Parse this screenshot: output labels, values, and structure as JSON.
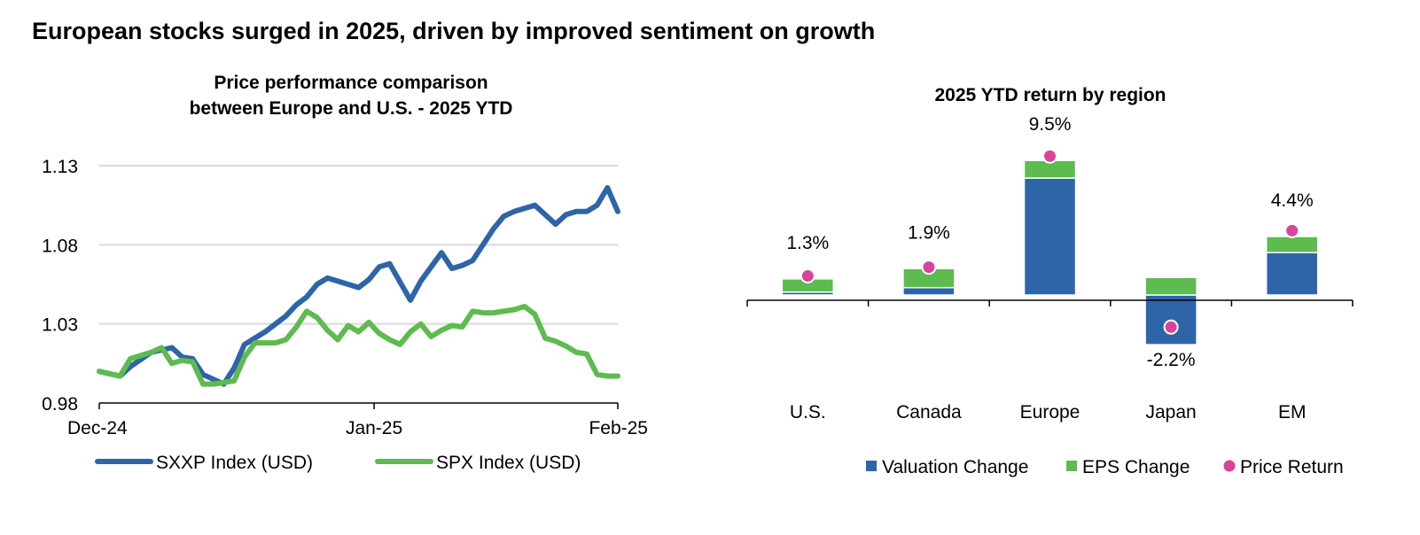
{
  "title": "European stocks surged in 2025, driven by improved sentiment on growth",
  "colors": {
    "blue": "#2E64A8",
    "green": "#5DBB4F",
    "pink": "#D9449A",
    "grid": "#D9D9D9",
    "axis": "#000000"
  },
  "chart_data": [
    {
      "type": "line",
      "title_lines": [
        "Price performance comparison",
        "between Europe and U.S. - 2025 YTD"
      ],
      "xlabel": "",
      "ylabel": "",
      "ylim": [
        0.98,
        1.13
      ],
      "yticks": [
        1.13,
        1.08,
        1.03,
        0.98
      ],
      "ytick_labels": [
        "1.13",
        "1.08",
        "1.03",
        "0.98"
      ],
      "grid": true,
      "legend_position": "bottom",
      "xticks": [
        {
          "t": 0,
          "label": "Dec-24"
        },
        {
          "t": 26.5,
          "label": "Jan-25"
        },
        {
          "t": 50,
          "label": "Feb-25"
        }
      ],
      "series": [
        {
          "name": "SXXP Index (USD)",
          "color": "blue",
          "x": [
            0,
            2,
            3,
            5,
            7,
            8,
            9,
            10,
            11,
            12,
            13,
            14,
            16,
            17,
            18,
            19,
            20,
            21,
            22,
            23,
            24,
            25,
            26,
            27,
            28,
            30,
            31,
            32,
            33,
            34,
            35,
            36,
            38,
            39,
            40,
            41,
            42,
            44,
            45,
            46,
            47,
            48,
            49,
            50
          ],
          "values": [
            1.0,
            0.997,
            1.003,
            1.012,
            1.015,
            1.009,
            1.008,
            0.998,
            0.995,
            0.992,
            1.002,
            1.017,
            1.025,
            1.03,
            1.035,
            1.042,
            1.047,
            1.055,
            1.059,
            1.057,
            1.055,
            1.053,
            1.058,
            1.066,
            1.068,
            1.045,
            1.057,
            1.066,
            1.075,
            1.065,
            1.067,
            1.07,
            1.09,
            1.098,
            1.101,
            1.103,
            1.105,
            1.093,
            1.099,
            1.101,
            1.101,
            1.105,
            1.116,
            1.101
          ]
        },
        {
          "name": "SPX Index (USD)",
          "color": "green",
          "x": [
            0,
            2,
            3,
            5,
            6,
            7,
            8,
            9,
            10,
            11,
            12,
            13,
            14,
            15,
            16,
            17,
            18,
            19,
            20,
            21,
            22,
            23,
            24,
            25,
            26,
            27,
            28,
            29,
            30,
            31,
            32,
            33,
            34,
            35,
            36,
            37,
            38,
            39,
            40,
            41,
            42,
            43,
            44,
            45,
            46,
            47,
            48,
            49,
            50
          ],
          "values": [
            1.0,
            0.997,
            1.008,
            1.012,
            1.015,
            1.005,
            1.007,
            1.006,
            0.992,
            0.992,
            0.993,
            0.994,
            1.009,
            1.018,
            1.018,
            1.018,
            1.02,
            1.028,
            1.038,
            1.034,
            1.026,
            1.02,
            1.029,
            1.025,
            1.031,
            1.024,
            1.02,
            1.017,
            1.025,
            1.03,
            1.022,
            1.026,
            1.029,
            1.028,
            1.038,
            1.037,
            1.037,
            1.038,
            1.039,
            1.041,
            1.036,
            1.021,
            1.019,
            1.016,
            1.012,
            1.011,
            0.998,
            0.997,
            0.997
          ]
        }
      ]
    },
    {
      "type": "bar",
      "title": "2025 YTD return by region",
      "categories": [
        "U.S.",
        "Canada",
        "Europe",
        "Japan",
        "EM"
      ],
      "ylim": [
        -4,
        12
      ],
      "grid": false,
      "legend_position": "bottom-right",
      "series": [
        {
          "name": "Valuation Change",
          "color": "blue",
          "marker": "square",
          "values": [
            0.2,
            0.5,
            8.0,
            -3.4,
            2.9
          ]
        },
        {
          "name": "EPS Change",
          "color": "green",
          "marker": "square",
          "values": [
            0.9,
            1.3,
            1.2,
            1.2,
            1.1
          ]
        },
        {
          "name": "Price Return",
          "color": "pink",
          "marker": "dot",
          "values": [
            1.3,
            1.9,
            9.5,
            -2.2,
            4.4
          ]
        }
      ],
      "data_labels": [
        "1.3%",
        "1.9%",
        "9.5%",
        "-2.2%",
        "4.4%"
      ]
    }
  ]
}
